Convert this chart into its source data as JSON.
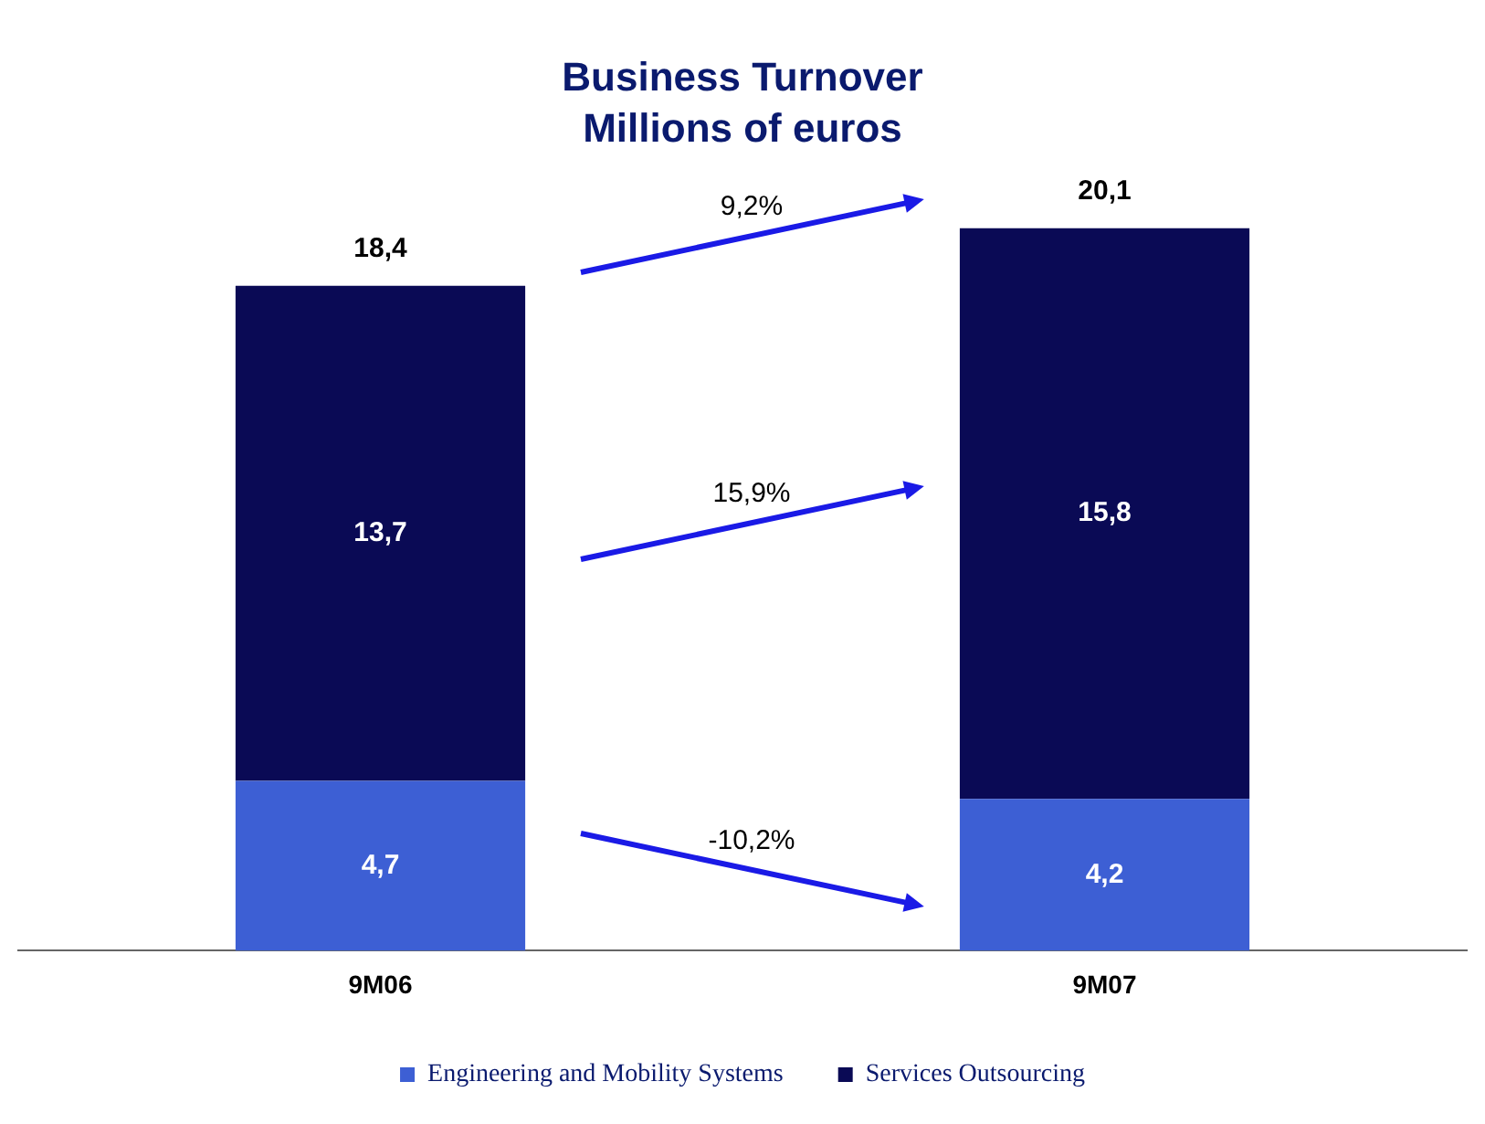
{
  "chart_data": {
    "type": "bar",
    "title": "Business Turnover",
    "subtitle": "Millions of euros",
    "categories": [
      "9M06",
      "9M07"
    ],
    "stacked": true,
    "tick_labels": "x",
    "grid": false,
    "legend": "bottom",
    "series": [
      {
        "name": "Engineering and Mobility Systems",
        "color": "#3d5fd4",
        "values": [
          4.7,
          4.2
        ],
        "value_labels": [
          "4,7",
          "4,2"
        ]
      },
      {
        "name": "Services Outsourcing",
        "color": "#0a0a55",
        "values": [
          13.7,
          15.8
        ],
        "value_labels": [
          "13,7",
          "15,8"
        ]
      }
    ],
    "totals": [
      "18,4",
      "20,1"
    ],
    "annotations": [
      "9,2%",
      "15,9%",
      "-10,2%"
    ]
  }
}
